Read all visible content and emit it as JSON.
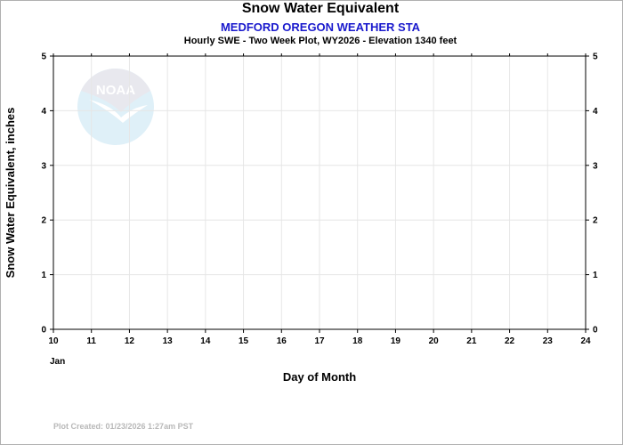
{
  "chart_data": {
    "type": "line",
    "title": "Snow Water Equivalent",
    "subtitle": "MEDFORD OREGON WEATHER STA",
    "subsubtitle": "Hourly SWE - Two Week Plot, WY2026 -  Elevation 1340 feet",
    "xlabel": "Day of Month",
    "ylabel": "Snow Water Equivalent, inches",
    "x_ticks": [
      "10",
      "11",
      "12",
      "13",
      "14",
      "15",
      "16",
      "17",
      "18",
      "19",
      "20",
      "21",
      "22",
      "23",
      "24"
    ],
    "x_month_label": "Jan",
    "xlim": [
      10,
      24
    ],
    "ylim": [
      0,
      5
    ],
    "y_ticks": [
      0,
      1,
      2,
      3,
      4,
      5
    ],
    "grid": true,
    "series": []
  },
  "footer": {
    "created": "Plot Created: 01/23/2026 1:27am PST"
  },
  "watermark": {
    "text": "NOAA",
    "icon": "noaa-logo"
  },
  "colors": {
    "title": "#000000",
    "subtitle": "#1a1acd",
    "grid": "#e6e6e6",
    "footer": "#b8b8b8",
    "watermark_light": "#dff0f8",
    "watermark_dark": "#e8e8ee"
  }
}
